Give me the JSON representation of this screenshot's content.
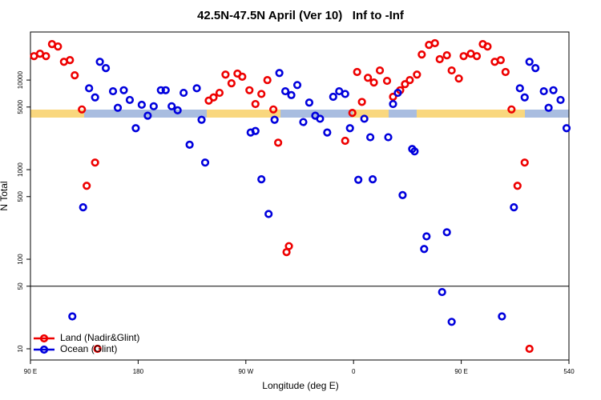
{
  "chart_data": {
    "type": "scatter",
    "title": "42.5N-47.5N April (Ver 10)   Inf to -Inf",
    "x_label": "Longitude (deg E)",
    "y_label": "N Total",
    "ylog": true,
    "xlim": [
      90,
      540
    ],
    "ylim": [
      7.5,
      34400
    ],
    "xticks": [
      {
        "value": 90,
        "label": "90 E"
      },
      180,
      {
        "value": 270,
        "label": "90 W"
      },
      {
        "value": 360,
        "label": "0"
      },
      {
        "value": 450,
        "label": "90 E"
      },
      540
    ],
    "yticks": [
      10,
      50,
      100,
      500,
      1000,
      5000,
      10000
    ],
    "hline": 50,
    "legend": "bottom-left",
    "series": [
      {
        "name": "Land (Nadir&Glint)",
        "color": "#ee0000",
        "x": [
          93,
          98,
          103,
          108,
          113,
          118,
          123,
          127,
          133,
          137,
          144,
          146,
          239,
          243,
          248,
          253,
          258,
          263,
          267,
          273,
          278,
          283,
          288,
          293,
          297,
          304,
          306,
          353,
          359,
          363,
          367,
          372,
          377,
          382,
          388,
          393,
          399,
          403,
          407,
          413,
          417,
          423,
          428,
          432,
          438,
          442,
          448,
          452,
          458,
          463,
          468,
          472,
          478,
          483,
          487,
          492,
          497,
          503,
          507
        ],
        "values": [
          18500,
          19700,
          18500,
          25200,
          23700,
          16000,
          16700,
          11300,
          4700,
          660,
          1200,
          10,
          5900,
          6400,
          7200,
          11500,
          9200,
          11800,
          10900,
          7700,
          5400,
          7000,
          10000,
          4700,
          2000,
          120,
          140,
          2100,
          4300,
          12300,
          5700,
          10600,
          9400,
          12800,
          9800,
          6500,
          7700,
          9000,
          10000,
          11500,
          19300,
          24700,
          25800,
          17100,
          18900,
          12800,
          10400,
          18500,
          19700,
          18500,
          25200,
          23700,
          16000,
          16700,
          12300,
          4700,
          660,
          1200,
          10
        ]
      },
      {
        "name": "Ocean (Glint)",
        "color": "#0000dd",
        "x": [
          125,
          134,
          139,
          144,
          148,
          153,
          159,
          163,
          168,
          173,
          178,
          183,
          188,
          193,
          199,
          203,
          208,
          213,
          218,
          223,
          229,
          233,
          236,
          274,
          278,
          283,
          289,
          294,
          298,
          303,
          308,
          313,
          318,
          323,
          328,
          332,
          338,
          343,
          348,
          353,
          357,
          364,
          369,
          374,
          376,
          389,
          393,
          397,
          401,
          409,
          411,
          419,
          421,
          434,
          438,
          442,
          484,
          494,
          499,
          503,
          507,
          512,
          519,
          523,
          527,
          533,
          538
        ],
        "values": [
          23,
          380,
          8100,
          6400,
          16000,
          13600,
          7500,
          4900,
          7700,
          6000,
          2900,
          5300,
          4000,
          5100,
          7700,
          7700,
          5100,
          4600,
          7200,
          1900,
          8100,
          3600,
          1200,
          2600,
          2700,
          780,
          320,
          3600,
          12000,
          7500,
          6800,
          8800,
          3400,
          5600,
          4000,
          3700,
          2600,
          6500,
          7500,
          7000,
          2900,
          770,
          3700,
          2300,
          780,
          2300,
          5400,
          7200,
          520,
          1700,
          1600,
          130,
          180,
          43,
          200,
          20,
          23,
          380,
          8100,
          6400,
          16000,
          13600,
          7500,
          4900,
          7700,
          6000,
          2900
        ]
      }
    ]
  }
}
